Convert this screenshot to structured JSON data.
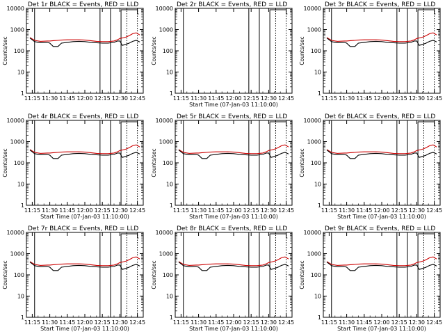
{
  "window": {
    "background": "#ffffff"
  },
  "style": {
    "event_color": "#000000",
    "lld_color": "#cc0000"
  },
  "chart_data": [
    {
      "type": "line",
      "panel": "Det 1r",
      "title": "Det 1r BLACK = Events, RED = LLD",
      "xlabel": "",
      "ylabel": "Counts/sec",
      "x_ticks": [
        "11:15",
        "11:30",
        "11:45",
        "12:00",
        "12:15",
        "12:30",
        "12:45"
      ],
      "xlim": [
        "11:10",
        "12:50"
      ],
      "y_scale": "log",
      "ylim": [
        1,
        10000
      ],
      "y_ticks": [
        "1",
        "10",
        "100",
        "1000",
        "10000"
      ],
      "has_data": true
    },
    {
      "type": "line",
      "panel": "Det 2r",
      "title": "Det 2r BLACK = Events, RED = LLD",
      "xlabel": "Start Time (07-Jan-03 11:10:00)",
      "ylabel": "Counts/sec",
      "x_ticks": [
        "11:15",
        "11:30",
        "11:45",
        "12:00",
        "12:15",
        "12:30",
        "12:45"
      ],
      "xlim": [
        "11:10",
        "12:50"
      ],
      "y_scale": "log",
      "ylim": [
        1,
        10000
      ],
      "y_ticks": [
        "1",
        "10",
        "100",
        "1000",
        "10000"
      ],
      "has_data": false
    },
    {
      "type": "line",
      "panel": "Det 3r",
      "title": "Det 3r BLACK = Events, RED = LLD",
      "xlabel": "",
      "ylabel": "Counts/sec",
      "x_ticks": [
        "11:15",
        "11:30",
        "11:45",
        "12:00",
        "12:15",
        "12:30",
        "12:45"
      ],
      "xlim": [
        "11:10",
        "12:50"
      ],
      "y_scale": "log",
      "ylim": [
        1,
        10000
      ],
      "y_ticks": [
        "1",
        "10",
        "100",
        "1000",
        "10000"
      ],
      "has_data": true
    },
    {
      "type": "line",
      "panel": "Det 4r",
      "title": "Det 4r BLACK = Events, RED = LLD",
      "xlabel": "Start Time (07-Jan-03 11:10:00)",
      "ylabel": "Counts/sec",
      "x_ticks": [
        "11:15",
        "11:30",
        "11:45",
        "12:00",
        "12:15",
        "12:30",
        "12:45"
      ],
      "xlim": [
        "11:10",
        "12:50"
      ],
      "y_scale": "log",
      "ylim": [
        1,
        10000
      ],
      "y_ticks": [
        "1",
        "10",
        "100",
        "1000",
        "10000"
      ],
      "has_data": true
    },
    {
      "type": "line",
      "panel": "Det 5r",
      "title": "Det 5r BLACK = Events, RED = LLD",
      "xlabel": "Start Time (07-Jan-03 11:10:00)",
      "ylabel": "Counts/sec",
      "x_ticks": [
        "11:15",
        "11:30",
        "11:45",
        "12:00",
        "12:15",
        "12:30",
        "12:45"
      ],
      "xlim": [
        "11:10",
        "12:50"
      ],
      "y_scale": "log",
      "ylim": [
        1,
        10000
      ],
      "y_ticks": [
        "1",
        "10",
        "100",
        "1000",
        "10000"
      ],
      "has_data": true
    },
    {
      "type": "line",
      "panel": "Det 6r",
      "title": "Det 6r BLACK = Events, RED = LLD",
      "xlabel": "Start Time (07-Jan-03 11:10:00)",
      "ylabel": "Counts/sec",
      "x_ticks": [
        "11:15",
        "11:30",
        "11:45",
        "12:00",
        "12:15",
        "12:30",
        "12:45"
      ],
      "xlim": [
        "11:10",
        "12:50"
      ],
      "y_scale": "log",
      "ylim": [
        1,
        10000
      ],
      "y_ticks": [
        "1",
        "10",
        "100",
        "1000",
        "10000"
      ],
      "has_data": true
    },
    {
      "type": "line",
      "panel": "Det 7r",
      "title": "Det 7r BLACK = Events, RED = LLD",
      "xlabel": "Start Time (07-Jan-03 11:10:00)",
      "ylabel": "Counts/sec",
      "x_ticks": [
        "11:15",
        "11:30",
        "11:45",
        "12:00",
        "12:15",
        "12:30",
        "12:45"
      ],
      "xlim": [
        "11:10",
        "12:50"
      ],
      "y_scale": "log",
      "ylim": [
        1,
        10000
      ],
      "y_ticks": [
        "1",
        "10",
        "100",
        "1000",
        "10000"
      ],
      "has_data": true
    },
    {
      "type": "line",
      "panel": "Det 8r",
      "title": "Det 8r BLACK = Events, RED = LLD",
      "xlabel": "Start Time (07-Jan-03 11:10:00)",
      "ylabel": "Counts/sec",
      "x_ticks": [
        "11:15",
        "11:30",
        "11:45",
        "12:00",
        "12:15",
        "12:30",
        "12:45"
      ],
      "xlim": [
        "11:10",
        "12:50"
      ],
      "y_scale": "log",
      "ylim": [
        1,
        10000
      ],
      "y_ticks": [
        "1",
        "10",
        "100",
        "1000",
        "10000"
      ],
      "has_data": true
    },
    {
      "type": "line",
      "panel": "Det 9r",
      "title": "Det 9r BLACK = Events, RED = LLD",
      "xlabel": "Start Time (07-Jan-03 11:10:00)",
      "ylabel": "Counts/sec",
      "x_ticks": [
        "11:15",
        "11:30",
        "11:45",
        "12:00",
        "12:15",
        "12:30",
        "12:45"
      ],
      "xlim": [
        "11:10",
        "12:50"
      ],
      "y_scale": "log",
      "ylim": [
        1,
        10000
      ],
      "y_ticks": [
        "1",
        "10",
        "100",
        "1000",
        "10000"
      ],
      "has_data": true
    }
  ],
  "shared": {
    "events_series": {
      "name": "Events",
      "x": [
        "11:13",
        "11:17",
        "11:22",
        "11:28",
        "11:30",
        "11:33",
        "11:37",
        "11:40",
        "11:45",
        "11:50",
        "11:55",
        "12:00",
        "12:05",
        "12:10",
        "12:15",
        "12:20",
        "12:25",
        "12:28",
        "12:30",
        "12:32",
        "12:35",
        "12:38",
        "12:41",
        "12:44",
        "12:47"
      ],
      "y": [
        400,
        270,
        240,
        250,
        230,
        160,
        160,
        230,
        250,
        270,
        280,
        270,
        250,
        240,
        230,
        230,
        250,
        290,
        290,
        180,
        200,
        230,
        280,
        310,
        260
      ]
    },
    "lld_series": {
      "name": "LLD",
      "x": [
        "11:13",
        "11:17",
        "11:22",
        "11:28",
        "11:30",
        "11:33",
        "11:37",
        "11:40",
        "11:45",
        "11:50",
        "11:55",
        "12:00",
        "12:05",
        "12:10",
        "12:15",
        "12:20",
        "12:25",
        "12:28",
        "12:30",
        "12:32",
        "12:35",
        "12:38",
        "12:41",
        "12:44",
        "12:47"
      ],
      "y": [
        420,
        310,
        280,
        290,
        290,
        300,
        310,
        320,
        330,
        330,
        330,
        320,
        300,
        280,
        270,
        270,
        290,
        330,
        380,
        400,
        440,
        520,
        640,
        700,
        560
      ]
    },
    "vlines_solid": [
      "11:17",
      "12:13",
      "12:22"
    ],
    "vlines_dotted": [
      "12:36",
      "12:45"
    ],
    "saa_bracket": [
      "12:31",
      "12:45",
      "12:46"
    ]
  }
}
